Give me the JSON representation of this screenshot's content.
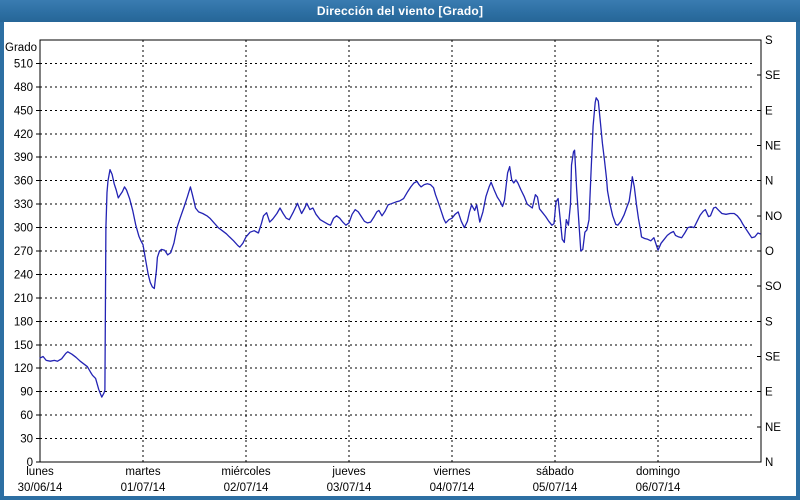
{
  "window": {
    "title": "Dirección del viento [Grado]"
  },
  "colors": {
    "titlebar": "#2d6fa3",
    "titlebar_text": "#ffffff",
    "frame": "#2d6fa3",
    "plot_bg": "#ffffff",
    "grid": "#000000",
    "text": "#000000",
    "line": "#2323b4"
  },
  "chart_data": {
    "type": "line",
    "title": "Dirección del viento [Grado]",
    "ylabel": "Grado",
    "xlabel": "",
    "ylim": [
      0,
      540
    ],
    "xlim_days": [
      0,
      7
    ],
    "grid": "dashed",
    "legend_position": "none",
    "yticks": [
      0,
      30,
      60,
      90,
      120,
      150,
      180,
      210,
      240,
      270,
      300,
      330,
      360,
      390,
      420,
      450,
      480,
      510
    ],
    "right_axis": {
      "description": "compass direction every 45 degrees",
      "ticks": [
        {
          "deg": 0,
          "label": "N"
        },
        {
          "deg": 45,
          "label": "NE"
        },
        {
          "deg": 90,
          "label": "E"
        },
        {
          "deg": 135,
          "label": "SE"
        },
        {
          "deg": 180,
          "label": "S"
        },
        {
          "deg": 225,
          "label": "SO"
        },
        {
          "deg": 270,
          "label": "O"
        },
        {
          "deg": 315,
          "label": "NO"
        },
        {
          "deg": 360,
          "label": "N"
        },
        {
          "deg": 405,
          "label": "NE"
        },
        {
          "deg": 450,
          "label": "E"
        },
        {
          "deg": 495,
          "label": "SE"
        },
        {
          "deg": 540,
          "label": "S"
        }
      ]
    },
    "x_days": [
      {
        "name": "lunes",
        "date": "30/06/14"
      },
      {
        "name": "martes",
        "date": "01/07/14"
      },
      {
        "name": "miércoles",
        "date": "02/07/14"
      },
      {
        "name": "jueves",
        "date": "03/07/14"
      },
      {
        "name": "viernes",
        "date": "04/07/14"
      },
      {
        "name": "sábado",
        "date": "05/07/14"
      },
      {
        "name": "domingo",
        "date": "06/07/14"
      }
    ],
    "series": [
      {
        "name": "Dirección del viento",
        "units": "Grado",
        "points": [
          [
            0.0,
            133
          ],
          [
            0.03,
            135
          ],
          [
            0.06,
            130
          ],
          [
            0.1,
            129
          ],
          [
            0.14,
            130
          ],
          [
            0.17,
            129
          ],
          [
            0.21,
            132
          ],
          [
            0.25,
            139
          ],
          [
            0.27,
            141
          ],
          [
            0.31,
            138
          ],
          [
            0.35,
            134
          ],
          [
            0.39,
            129
          ],
          [
            0.43,
            125
          ],
          [
            0.46,
            122
          ],
          [
            0.49,
            115
          ],
          [
            0.51,
            111
          ],
          [
            0.54,
            107
          ],
          [
            0.57,
            93
          ],
          [
            0.59,
            86
          ],
          [
            0.6,
            83
          ],
          [
            0.62,
            88
          ],
          [
            0.63,
            92
          ],
          [
            0.64,
            300
          ],
          [
            0.65,
            345
          ],
          [
            0.66,
            360
          ],
          [
            0.68,
            374
          ],
          [
            0.7,
            368
          ],
          [
            0.72,
            356
          ],
          [
            0.74,
            348
          ],
          [
            0.76,
            338
          ],
          [
            0.78,
            342
          ],
          [
            0.8,
            346
          ],
          [
            0.82,
            352
          ],
          [
            0.84,
            348
          ],
          [
            0.87,
            337
          ],
          [
            0.9,
            322
          ],
          [
            0.93,
            303
          ],
          [
            0.96,
            289
          ],
          [
            0.98,
            283
          ],
          [
            1.0,
            278
          ],
          [
            1.03,
            255
          ],
          [
            1.05,
            240
          ],
          [
            1.07,
            230
          ],
          [
            1.09,
            224
          ],
          [
            1.11,
            222
          ],
          [
            1.13,
            245
          ],
          [
            1.14,
            262
          ],
          [
            1.16,
            270
          ],
          [
            1.18,
            272
          ],
          [
            1.21,
            271
          ],
          [
            1.24,
            265
          ],
          [
            1.27,
            268
          ],
          [
            1.3,
            280
          ],
          [
            1.33,
            300
          ],
          [
            1.36,
            312
          ],
          [
            1.4,
            327
          ],
          [
            1.43,
            339
          ],
          [
            1.46,
            352
          ],
          [
            1.48,
            342
          ],
          [
            1.5,
            331
          ],
          [
            1.51,
            325
          ],
          [
            1.54,
            320
          ],
          [
            1.58,
            318
          ],
          [
            1.62,
            315
          ],
          [
            1.65,
            312
          ],
          [
            1.69,
            306
          ],
          [
            1.73,
            300
          ],
          [
            1.77,
            296
          ],
          [
            1.81,
            292
          ],
          [
            1.84,
            288
          ],
          [
            1.88,
            283
          ],
          [
            1.92,
            277
          ],
          [
            1.94,
            275
          ],
          [
            1.97,
            280
          ],
          [
            2.0,
            288
          ],
          [
            2.04,
            294
          ],
          [
            2.08,
            296
          ],
          [
            2.12,
            293
          ],
          [
            2.15,
            305
          ],
          [
            2.17,
            315
          ],
          [
            2.2,
            319
          ],
          [
            2.23,
            307
          ],
          [
            2.26,
            311
          ],
          [
            2.3,
            318
          ],
          [
            2.33,
            325
          ],
          [
            2.36,
            318
          ],
          [
            2.39,
            312
          ],
          [
            2.42,
            310
          ],
          [
            2.46,
            320
          ],
          [
            2.5,
            331
          ],
          [
            2.52,
            324
          ],
          [
            2.54,
            318
          ],
          [
            2.57,
            325
          ],
          [
            2.59,
            331
          ],
          [
            2.62,
            323
          ],
          [
            2.65,
            325
          ],
          [
            2.68,
            317
          ],
          [
            2.72,
            310
          ],
          [
            2.76,
            307
          ],
          [
            2.8,
            304
          ],
          [
            2.82,
            303
          ],
          [
            2.85,
            312
          ],
          [
            2.88,
            315
          ],
          [
            2.91,
            312
          ],
          [
            2.94,
            307
          ],
          [
            2.97,
            303
          ],
          [
            3.0,
            306
          ],
          [
            3.03,
            317
          ],
          [
            3.06,
            323
          ],
          [
            3.09,
            320
          ],
          [
            3.12,
            314
          ],
          [
            3.15,
            308
          ],
          [
            3.18,
            306
          ],
          [
            3.21,
            307
          ],
          [
            3.24,
            313
          ],
          [
            3.27,
            320
          ],
          [
            3.29,
            322
          ],
          [
            3.32,
            315
          ],
          [
            3.35,
            321
          ],
          [
            3.38,
            329
          ],
          [
            3.42,
            331
          ],
          [
            3.46,
            333
          ],
          [
            3.49,
            334
          ],
          [
            3.53,
            337
          ],
          [
            3.57,
            346
          ],
          [
            3.6,
            352
          ],
          [
            3.63,
            357
          ],
          [
            3.66,
            359
          ],
          [
            3.68,
            355
          ],
          [
            3.7,
            352
          ],
          [
            3.73,
            355
          ],
          [
            3.76,
            356
          ],
          [
            3.79,
            355
          ],
          [
            3.82,
            351
          ],
          [
            3.84,
            342
          ],
          [
            3.87,
            331
          ],
          [
            3.9,
            319
          ],
          [
            3.92,
            311
          ],
          [
            3.94,
            306
          ],
          [
            3.97,
            310
          ],
          [
            4.0,
            312
          ],
          [
            4.03,
            317
          ],
          [
            4.06,
            320
          ],
          [
            4.09,
            308
          ],
          [
            4.12,
            300
          ],
          [
            4.15,
            308
          ],
          [
            4.17,
            320
          ],
          [
            4.19,
            329
          ],
          [
            4.22,
            322
          ],
          [
            4.24,
            329
          ],
          [
            4.27,
            307
          ],
          [
            4.3,
            320
          ],
          [
            4.33,
            340
          ],
          [
            4.36,
            352
          ],
          [
            4.38,
            358
          ],
          [
            4.41,
            348
          ],
          [
            4.44,
            339
          ],
          [
            4.47,
            333
          ],
          [
            4.49,
            327
          ],
          [
            4.51,
            335
          ],
          [
            4.54,
            370
          ],
          [
            4.56,
            378
          ],
          [
            4.58,
            361
          ],
          [
            4.6,
            357
          ],
          [
            4.62,
            361
          ],
          [
            4.64,
            357
          ],
          [
            4.67,
            348
          ],
          [
            4.7,
            340
          ],
          [
            4.73,
            330
          ],
          [
            4.76,
            327
          ],
          [
            4.78,
            325
          ],
          [
            4.81,
            342
          ],
          [
            4.83,
            339
          ],
          [
            4.85,
            324
          ],
          [
            4.88,
            319
          ],
          [
            4.91,
            314
          ],
          [
            4.94,
            308
          ],
          [
            4.97,
            303
          ],
          [
            4.99,
            305
          ],
          [
            5.01,
            333
          ],
          [
            5.03,
            337
          ],
          [
            5.05,
            312
          ],
          [
            5.07,
            285
          ],
          [
            5.09,
            281
          ],
          [
            5.11,
            310
          ],
          [
            5.13,
            303
          ],
          [
            5.15,
            330
          ],
          [
            5.16,
            380
          ],
          [
            5.18,
            397
          ],
          [
            5.19,
            399
          ],
          [
            5.21,
            350
          ],
          [
            5.23,
            310
          ],
          [
            5.25,
            270
          ],
          [
            5.27,
            272
          ],
          [
            5.29,
            294
          ],
          [
            5.31,
            297
          ],
          [
            5.33,
            310
          ],
          [
            5.35,
            370
          ],
          [
            5.37,
            430
          ],
          [
            5.39,
            460
          ],
          [
            5.4,
            466
          ],
          [
            5.42,
            462
          ],
          [
            5.44,
            436
          ],
          [
            5.46,
            408
          ],
          [
            5.48,
            387
          ],
          [
            5.5,
            363
          ],
          [
            5.51,
            347
          ],
          [
            5.53,
            332
          ],
          [
            5.56,
            315
          ],
          [
            5.59,
            304
          ],
          [
            5.61,
            303
          ],
          [
            5.64,
            308
          ],
          [
            5.67,
            316
          ],
          [
            5.7,
            327
          ],
          [
            5.72,
            334
          ],
          [
            5.74,
            352
          ],
          [
            5.75,
            365
          ],
          [
            5.77,
            352
          ],
          [
            5.79,
            330
          ],
          [
            5.81,
            312
          ],
          [
            5.83,
            297
          ],
          [
            5.84,
            288
          ],
          [
            5.87,
            286
          ],
          [
            5.9,
            285
          ],
          [
            5.93,
            283
          ],
          [
            5.96,
            287
          ],
          [
            6.0,
            271
          ],
          [
            6.03,
            280
          ],
          [
            6.06,
            285
          ],
          [
            6.09,
            290
          ],
          [
            6.12,
            293
          ],
          [
            6.15,
            295
          ],
          [
            6.17,
            290
          ],
          [
            6.2,
            288
          ],
          [
            6.23,
            287
          ],
          [
            6.26,
            293
          ],
          [
            6.29,
            300
          ],
          [
            6.32,
            301
          ],
          [
            6.35,
            300
          ],
          [
            6.38,
            308
          ],
          [
            6.41,
            316
          ],
          [
            6.44,
            321
          ],
          [
            6.46,
            323
          ],
          [
            6.49,
            314
          ],
          [
            6.51,
            315
          ],
          [
            6.54,
            325
          ],
          [
            6.56,
            326
          ],
          [
            6.59,
            322
          ],
          [
            6.62,
            318
          ],
          [
            6.66,
            317
          ],
          [
            6.7,
            318
          ],
          [
            6.74,
            318
          ],
          [
            6.77,
            315
          ],
          [
            6.8,
            310
          ],
          [
            6.82,
            305
          ],
          [
            6.85,
            299
          ],
          [
            6.88,
            293
          ],
          [
            6.91,
            287
          ],
          [
            6.94,
            288
          ],
          [
            6.97,
            293
          ],
          [
            6.99,
            292
          ]
        ]
      }
    ]
  }
}
